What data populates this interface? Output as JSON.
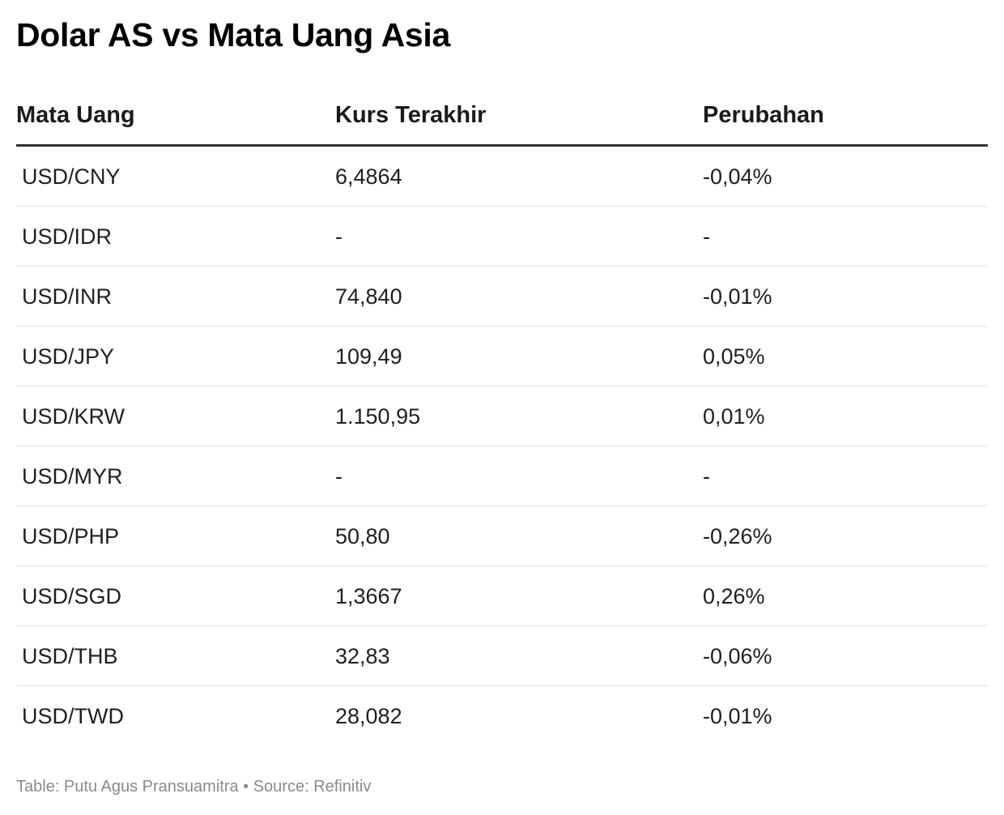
{
  "title": "Dolar AS vs Mata Uang Asia",
  "chart_data": {
    "type": "table",
    "title": "Dolar AS vs Mata Uang Asia",
    "columns": [
      "Mata Uang",
      "Kurs Terakhir",
      "Perubahan"
    ],
    "rows": [
      [
        "USD/CNY",
        "6,4864",
        "-0,04%"
      ],
      [
        "USD/IDR",
        "-",
        "-"
      ],
      [
        "USD/INR",
        "74,840",
        "-0,01%"
      ],
      [
        "USD/JPY",
        "109,49",
        "0,05%"
      ],
      [
        "USD/KRW",
        "1.150,95",
        "0,01%"
      ],
      [
        "USD/MYR",
        "-",
        "-"
      ],
      [
        "USD/PHP",
        "50,80",
        "-0,26%"
      ],
      [
        "USD/SGD",
        "1,3667",
        "0,26%"
      ],
      [
        "USD/THB",
        "32,83",
        "-0,06%"
      ],
      [
        "USD/TWD",
        "28,082",
        "-0,01%"
      ]
    ]
  },
  "footer": "Table: Putu Agus Pransuamitra • Source: Refinitiv"
}
